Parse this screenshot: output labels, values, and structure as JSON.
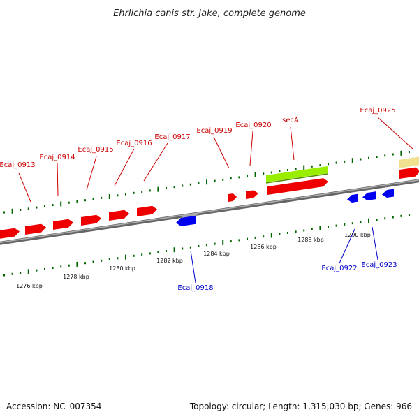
{
  "title": "Ehrlichia canis str. Jake, complete genome",
  "footer": {
    "accession": "Accession: NC_007354",
    "summary": "Topology: circular; Length: 1,315,030 bp; Genes: 966"
  },
  "colors": {
    "forward_gene": "#ee0000",
    "reverse_gene": "#0000ee",
    "secA_overlay": "#99ee00",
    "gene_tan": "#f0e090",
    "tick_green": "#006600",
    "backbone": "#888888",
    "label_forward": "#cc0000",
    "label_reverse": "#0000cc"
  },
  "scale_labels": [
    "1276 kbp",
    "1278 kbp",
    "1280 kbp",
    "1282 kbp",
    "1284 kbp",
    "1286 kbp",
    "1288 kbp",
    "1290 kbp"
  ],
  "gene_labels_forward": [
    "Ecaj_0913",
    "Ecaj_0914",
    "Ecaj_0915",
    "Ecaj_0916",
    "Ecaj_0917",
    "Ecaj_0919",
    "Ecaj_0920",
    "secA",
    "Ecaj_0925"
  ],
  "gene_labels_reverse": [
    "Ecaj_0918",
    "Ecaj_0922",
    "Ecaj_0923"
  ]
}
